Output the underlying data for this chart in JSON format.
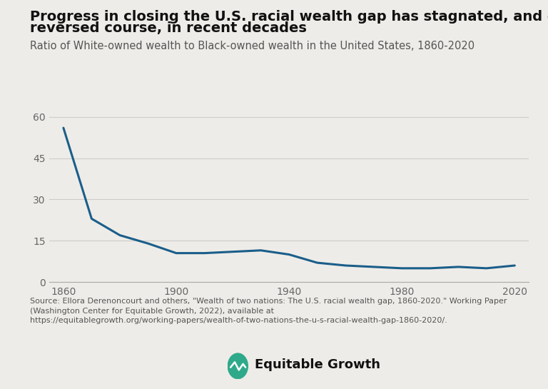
{
  "title_line1": "Progress in closing the U.S. racial wealth gap has stagnated, and even",
  "title_line2": "reversed course, in recent decades",
  "subtitle": "Ratio of White-owned wealth to Black-owned wealth in the United States, 1860-2020",
  "source_text": "Source: Ellora Derenoncourt and others, \"Wealth of two nations: The U.S. racial wealth gap, 1860-2020.\" Working Paper\n(Washington Center for Equitable Growth, 2022), available at\nhttps://equitablegrowth.org/working-papers/wealth-of-two-nations-the-u-s-racial-wealth-gap-1860-2020/.",
  "years": [
    1860,
    1870,
    1880,
    1890,
    1900,
    1910,
    1920,
    1930,
    1940,
    1950,
    1960,
    1970,
    1980,
    1990,
    2000,
    2010,
    2020
  ],
  "values": [
    56,
    23,
    17,
    14,
    10.5,
    10.5,
    11,
    11.5,
    10,
    7,
    6,
    5.5,
    5,
    5,
    5.5,
    5,
    6
  ],
  "line_color": "#1a5e8a",
  "background_color": "#eeece8",
  "yticks": [
    0,
    15,
    30,
    45,
    60
  ],
  "xticks": [
    1860,
    1900,
    1940,
    1980,
    2020
  ],
  "ylim": [
    0,
    65
  ],
  "xlim": [
    1855,
    2025
  ],
  "grid_color": "#cccccc",
  "title_fontsize": 14,
  "subtitle_fontsize": 10.5,
  "source_fontsize": 8,
  "tick_fontsize": 10,
  "logo_text": "Equitable Growth",
  "logo_fontsize": 13
}
